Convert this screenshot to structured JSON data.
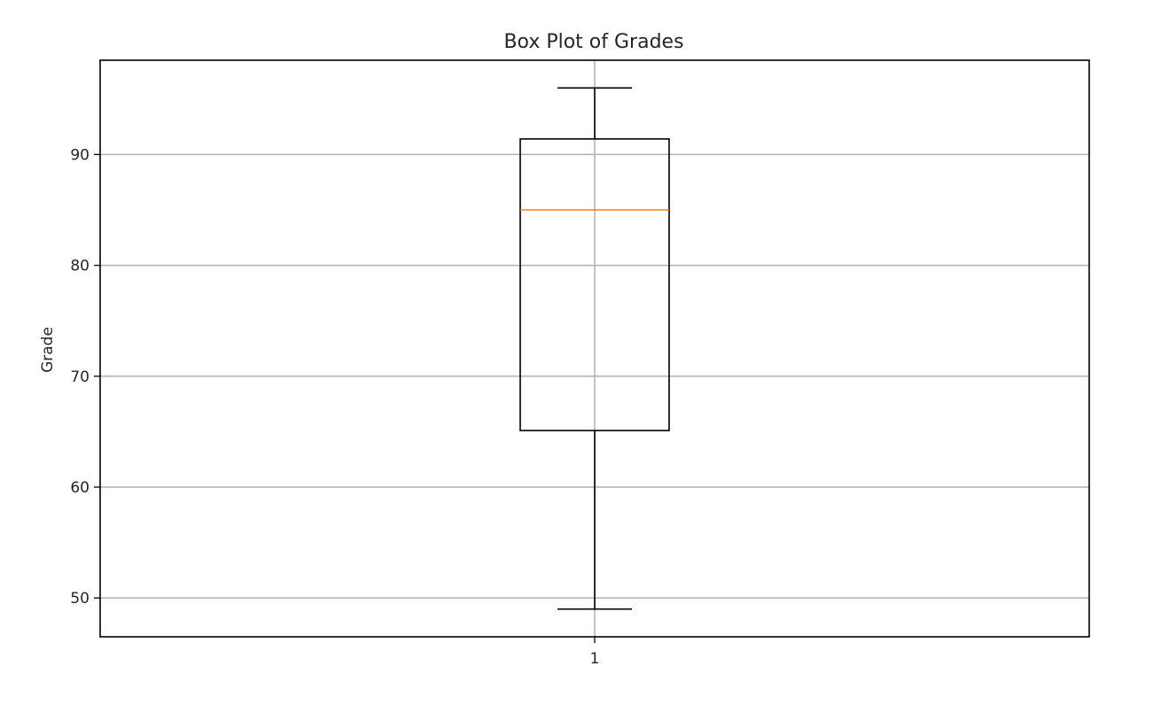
{
  "chart_data": {
    "type": "box",
    "title": "Box Plot of Grades",
    "xlabel": "",
    "ylabel": "Grade",
    "x_tick_labels": [
      "1"
    ],
    "y_ticks": [
      50,
      60,
      70,
      80,
      90
    ],
    "ylim": [
      46.5,
      98.5
    ],
    "grid": true,
    "boxes": [
      {
        "category": "1",
        "whisker_low": 49,
        "q1": 65.1,
        "median": 85,
        "q3": 91.4,
        "whisker_high": 96
      }
    ],
    "colors": {
      "box": "#000000",
      "median": "#ff7f0e",
      "grid": "#b0b0b0",
      "axes": "#000000"
    }
  }
}
